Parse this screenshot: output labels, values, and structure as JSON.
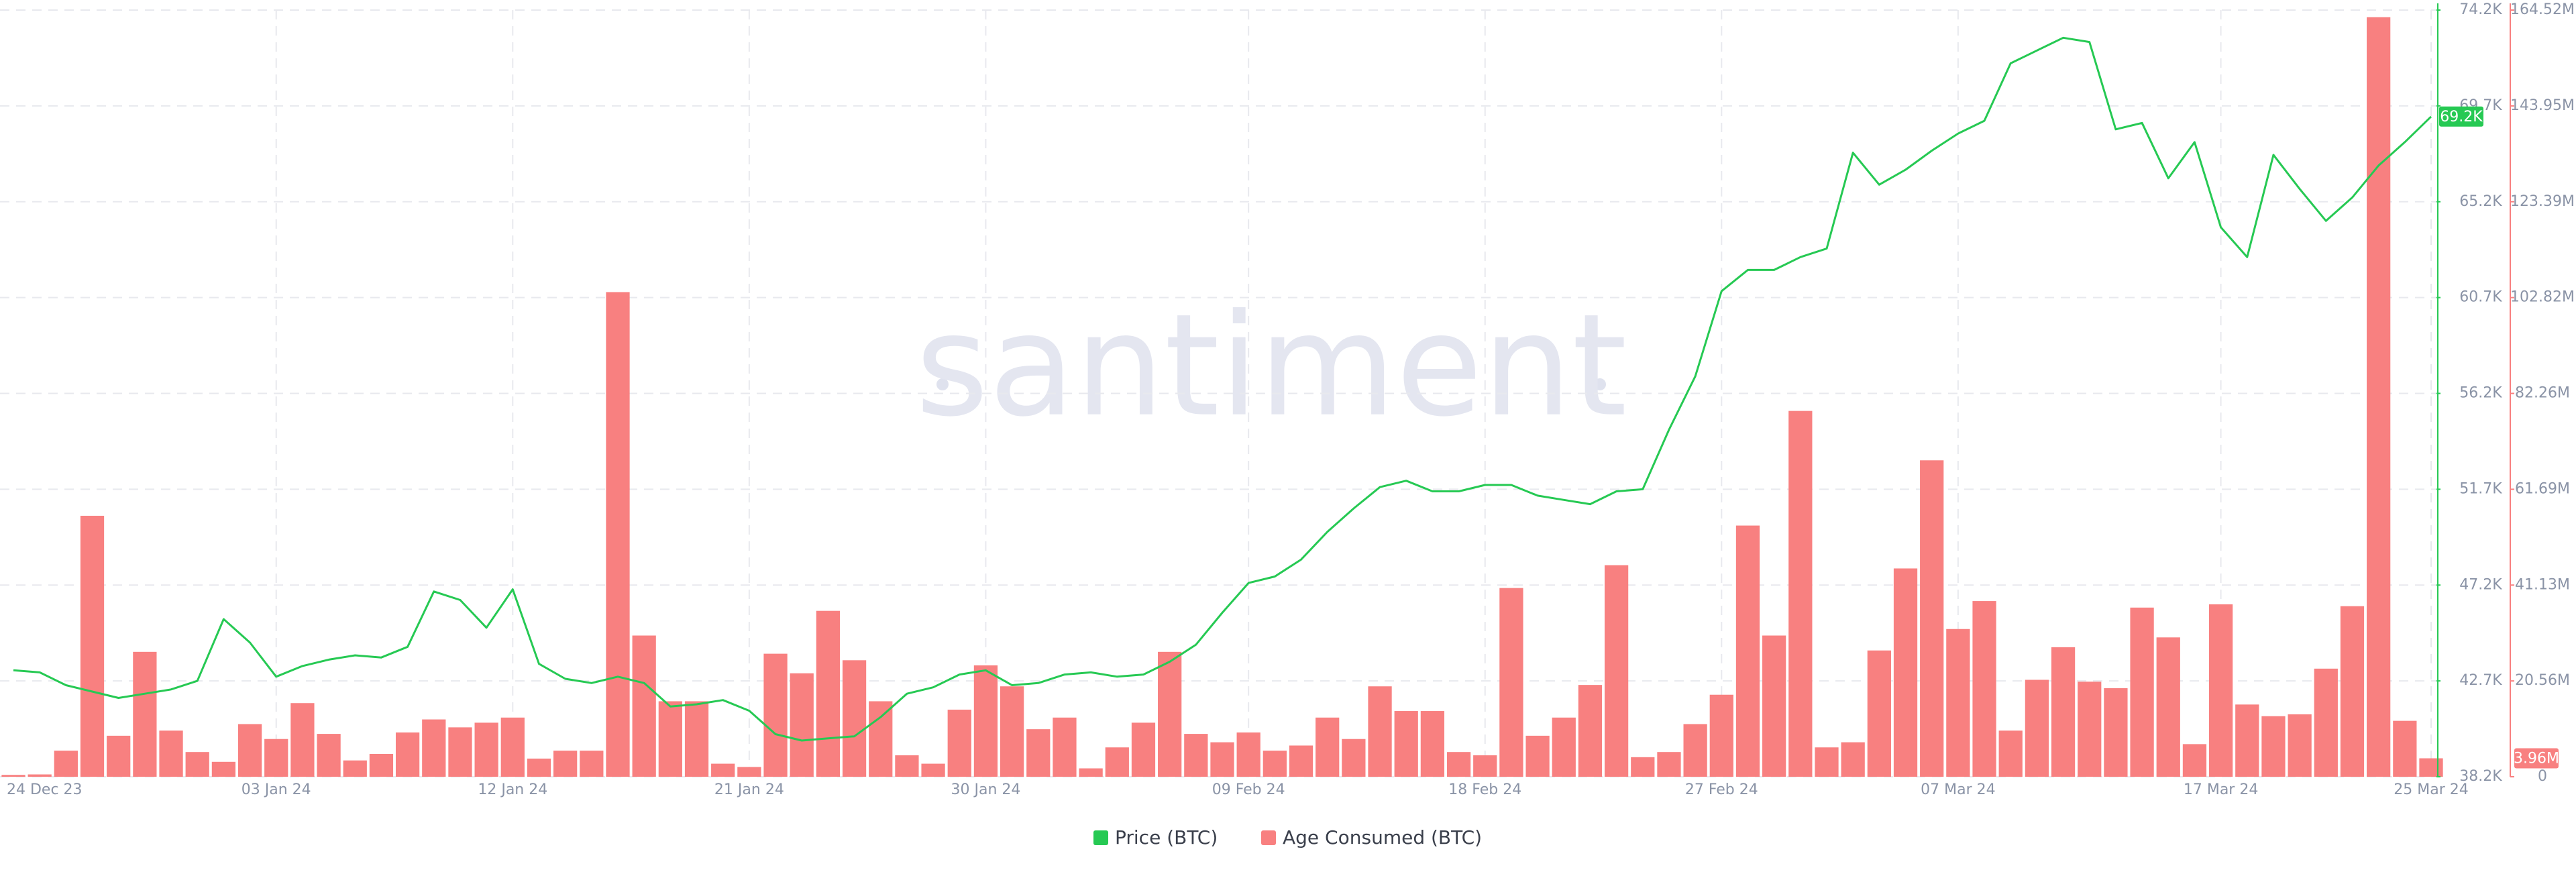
{
  "chart_data": {
    "type": "combo",
    "watermark": "santiment",
    "categories": [
      "24 Dec 23",
      null,
      null,
      null,
      null,
      null,
      null,
      null,
      null,
      null,
      "03 Jan 24",
      null,
      null,
      null,
      null,
      null,
      null,
      null,
      null,
      "12 Jan 24",
      null,
      null,
      null,
      null,
      null,
      null,
      null,
      null,
      "21 Jan 24",
      null,
      null,
      null,
      null,
      null,
      null,
      null,
      null,
      "30 Jan 24",
      null,
      null,
      null,
      null,
      null,
      null,
      null,
      null,
      null,
      "09 Feb 24",
      null,
      null,
      null,
      null,
      null,
      null,
      null,
      null,
      "18 Feb 24",
      null,
      null,
      null,
      null,
      null,
      null,
      null,
      null,
      "27 Feb 24",
      null,
      null,
      null,
      null,
      null,
      null,
      null,
      null,
      "07 Mar 24",
      null,
      null,
      null,
      null,
      null,
      null,
      null,
      null,
      null,
      "17 Mar 24",
      null,
      null,
      null,
      null,
      null,
      null,
      null,
      "25 Mar 24"
    ],
    "ylim": [
      38200,
      74200
    ],
    "yticks": [
      {
        "value": 38200,
        "label": "38.2K"
      },
      {
        "value": 42700,
        "label": "42.7K"
      },
      {
        "value": 47200,
        "label": "47.2K"
      },
      {
        "value": 51700,
        "label": "51.7K"
      },
      {
        "value": 56200,
        "label": "56.2K"
      },
      {
        "value": 60700,
        "label": "60.7K"
      },
      {
        "value": 65200,
        "label": "65.2K"
      },
      {
        "value": 69700,
        "label": "69.7K"
      },
      {
        "value": 74200,
        "label": "74.2K"
      }
    ],
    "y2lim": [
      0,
      164520000
    ],
    "y2ticks": [
      0,
      {
        "value": 20560000,
        "label": "20.56M"
      },
      {
        "value": 41130000,
        "label": "41.13M"
      },
      {
        "value": 61690000,
        "label": "61.69M"
      },
      {
        "value": 82260000,
        "label": "82.26M"
      },
      {
        "value": 102820000,
        "label": "102.82M"
      },
      {
        "value": 123390000,
        "label": "123.39M"
      },
      {
        "value": 143950000,
        "label": "143.95M"
      },
      {
        "value": 164520000,
        "label": "164.52M"
      }
    ],
    "grid": true,
    "legend": "bottom",
    "series": [
      {
        "name": "Price (BTC)",
        "type": "line",
        "axis": "y",
        "color": "#26c953",
        "last_value_label": "69.2K",
        "values": [
          43200,
          43100,
          42500,
          42200,
          41900,
          42100,
          42300,
          42700,
          45600,
          44500,
          42900,
          43400,
          43700,
          43900,
          43800,
          44300,
          46900,
          46500,
          45200,
          47000,
          43500,
          42800,
          42600,
          42900,
          42600,
          41500,
          41600,
          41800,
          41300,
          40200,
          39900,
          40000,
          40100,
          41000,
          42100,
          42400,
          43000,
          43200,
          42500,
          42600,
          43000,
          43100,
          42900,
          43000,
          43600,
          44400,
          45900,
          47300,
          47600,
          48400,
          49700,
          50800,
          51800,
          52100,
          51600,
          51600,
          51900,
          51900,
          51400,
          51200,
          51000,
          51600,
          51700,
          54500,
          57000,
          61000,
          62000,
          62000,
          62600,
          63000,
          67500,
          66000,
          66700,
          67600,
          68400,
          69000,
          71700,
          72300,
          72900,
          72700,
          68600,
          68900,
          66300,
          68000,
          64000,
          62600,
          67400,
          65800,
          64300,
          65400,
          66900,
          68000,
          69200
        ]
      },
      {
        "name": "Age Consumed (BTC)",
        "type": "bar",
        "axis": "y2",
        "color": "#f88080",
        "last_value_label": "3.96M",
        "values": [
          400000,
          500000,
          5600000,
          56000000,
          8800000,
          26800000,
          9900000,
          5300000,
          3200000,
          11300000,
          8100000,
          15800000,
          9200000,
          3500000,
          4900000,
          9500000,
          12300000,
          10600000,
          11600000,
          12700000,
          3900000,
          5600000,
          5600000,
          104000000,
          30300000,
          16200000,
          16200000,
          2800000,
          2100000,
          26400000,
          22200000,
          35600000,
          25000000,
          16200000,
          4600000,
          2800000,
          14400000,
          23900000,
          19400000,
          10200000,
          12700000,
          1800000,
          6300000,
          11600000,
          26800000,
          9200000,
          7400000,
          9500000,
          5600000,
          6700000,
          12700000,
          8100000,
          19400000,
          14100000,
          14100000,
          5300000,
          4600000,
          40500000,
          8800000,
          12700000,
          19700000,
          45400000,
          4200000,
          5300000,
          11300000,
          17600000,
          53900000,
          30300000,
          78500000,
          6300000,
          7400000,
          27100000,
          44700000,
          67900000,
          31700000,
          37700000,
          9900000,
          20800000,
          27800000,
          20400000,
          19000000,
          36300000,
          29900000,
          7000000,
          37000000,
          15500000,
          13000000,
          13400000,
          23200000,
          36600000,
          163000000,
          12000000,
          3960000
        ]
      }
    ]
  }
}
